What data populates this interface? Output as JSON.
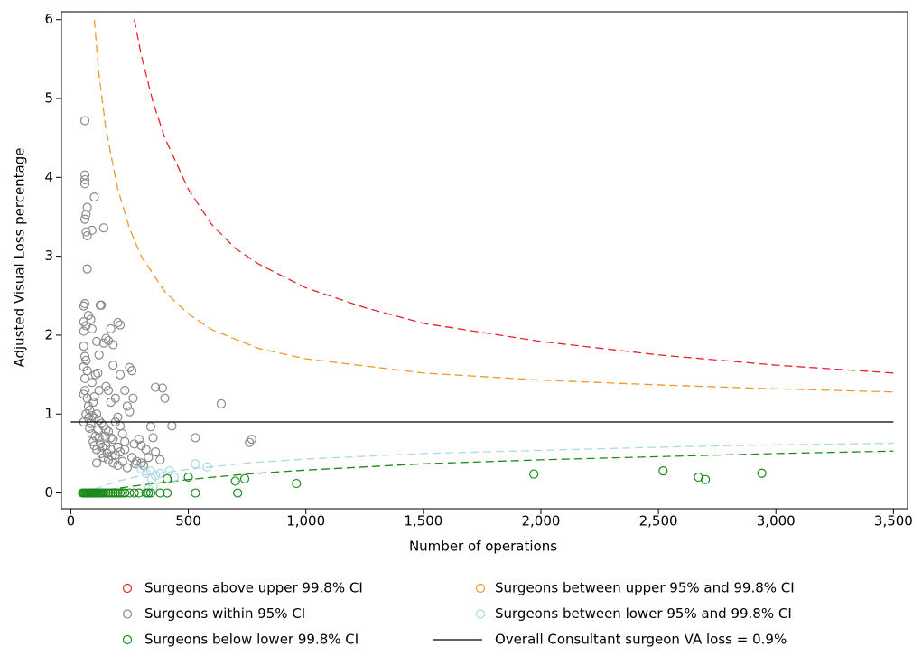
{
  "chart_data": {
    "type": "scatter",
    "xlabel": "Number of operations",
    "ylabel": "Adjusted Visual Loss percentage",
    "xlim": [
      -40,
      3560
    ],
    "ylim": [
      -0.2,
      6.1
    ],
    "xticks": [
      0,
      500,
      {
        "value": 1000,
        "label": "1,000"
      },
      {
        "value": 1500,
        "label": "1,500"
      },
      {
        "value": 2000,
        "label": "2,000"
      },
      {
        "value": 2500,
        "label": "2,500"
      },
      {
        "value": 3000,
        "label": "3,000"
      },
      {
        "value": 3500,
        "label": "3,500"
      }
    ],
    "yticks": [
      0,
      1,
      2,
      3,
      4,
      5,
      6
    ],
    "series": [
      {
        "name": "Surgeons above upper 99.8% CI",
        "color": "#e8202a",
        "marker": "circle",
        "x": [],
        "y": []
      },
      {
        "name": "Surgeons between upper 95% and 99.8% CI",
        "color": "#f0962a",
        "marker": "circle",
        "x": [],
        "y": []
      },
      {
        "name": "Surgeons within 95% CI",
        "color": "#8a8a8a",
        "marker": "circle",
        "x": [
          60,
          60,
          60,
          60,
          100,
          70,
          65,
          60,
          65,
          70,
          90,
          140,
          70,
          60,
          55,
          75,
          55,
          55,
          85,
          65,
          90,
          130,
          125,
          200,
          210,
          55,
          60,
          65,
          55,
          70,
          110,
          120,
          150,
          160,
          140,
          170,
          180,
          115,
          105,
          180,
          250,
          260,
          90,
          60,
          55,
          70,
          100,
          120,
          150,
          160,
          170,
          190,
          210,
          230,
          240,
          265,
          360,
          390,
          400,
          640,
          80,
          90,
          100,
          110,
          120,
          130,
          140,
          150,
          160,
          170,
          180,
          190,
          200,
          210,
          220,
          230,
          250,
          270,
          290,
          300,
          320,
          340,
          350,
          360,
          430,
          530,
          770,
          760,
          80,
          90,
          95,
          100,
          110,
          120,
          130,
          140,
          150,
          160,
          170,
          180,
          190,
          200,
          210,
          220,
          240,
          260,
          280,
          300,
          310,
          330,
          380,
          55,
          65,
          75,
          85,
          60,
          75,
          95,
          105,
          115,
          125,
          135,
          145,
          155,
          175,
          200,
          230,
          275,
          110
        ],
        "y": [
          4.72,
          4.03,
          3.97,
          3.92,
          3.75,
          3.62,
          3.53,
          3.47,
          3.31,
          3.26,
          3.33,
          3.36,
          2.84,
          2.4,
          2.37,
          2.25,
          2.17,
          2.05,
          2.2,
          2.12,
          2.08,
          2.38,
          2.38,
          2.16,
          2.13,
          1.86,
          1.73,
          1.68,
          1.6,
          1.55,
          1.92,
          1.75,
          1.96,
          1.93,
          1.9,
          2.08,
          1.88,
          1.52,
          1.5,
          1.62,
          1.59,
          1.55,
          1.4,
          1.3,
          1.25,
          1.2,
          1.22,
          1.3,
          1.35,
          1.3,
          1.15,
          1.2,
          1.5,
          1.3,
          1.1,
          1.2,
          1.34,
          1.33,
          1.2,
          1.13,
          1.05,
          0.98,
          0.95,
          1.0,
          0.92,
          0.88,
          0.85,
          0.8,
          0.78,
          0.7,
          0.68,
          0.9,
          0.96,
          0.85,
          0.75,
          0.65,
          1.03,
          0.62,
          0.68,
          0.6,
          0.55,
          0.84,
          0.7,
          0.52,
          0.85,
          0.7,
          0.68,
          0.64,
          0.82,
          0.75,
          0.65,
          0.6,
          0.55,
          0.7,
          0.5,
          0.45,
          0.6,
          0.42,
          0.55,
          0.38,
          0.48,
          0.35,
          0.52,
          0.4,
          0.32,
          0.45,
          0.4,
          0.38,
          0.35,
          0.45,
          0.42,
          0.9,
          1.0,
          0.95,
          0.88,
          1.45,
          1.1,
          1.15,
          0.72,
          0.8,
          0.62,
          0.58,
          0.72,
          0.5,
          0.47,
          0.58,
          0.55,
          0.37,
          0.38
        ]
      },
      {
        "name": "Surgeons between lower 95% and 99.8% CI",
        "color": "#add8e6",
        "marker": "circle",
        "x": [
          320,
          340,
          360,
          380,
          420,
          440,
          530,
          580,
          300,
          345,
          330,
          350
        ],
        "y": [
          0.25,
          0.28,
          0.22,
          0.25,
          0.28,
          0.2,
          0.37,
          0.33,
          0.3,
          0.18,
          0.05,
          0.08
        ]
      },
      {
        "name": "Surgeons below lower 99.8% CI",
        "color": "#1a8a1a",
        "marker": "circle",
        "x": [
          50,
          55,
          60,
          65,
          70,
          75,
          80,
          85,
          90,
          95,
          100,
          105,
          110,
          115,
          120,
          125,
          130,
          135,
          140,
          150,
          160,
          170,
          180,
          190,
          200,
          210,
          220,
          230,
          250,
          270,
          290,
          320,
          330,
          340,
          380,
          410,
          410,
          500,
          530,
          700,
          710,
          740,
          960,
          1970,
          2520,
          2670,
          2700,
          2940
        ],
        "y": [
          0,
          0,
          0,
          0,
          0,
          0,
          0,
          0,
          0,
          0,
          0,
          0,
          0,
          0,
          0,
          0,
          0,
          0,
          0,
          0,
          0,
          0,
          0,
          0,
          0,
          0,
          0,
          0,
          0,
          0,
          0,
          0,
          0,
          0,
          0,
          0,
          0.18,
          0.2,
          0,
          0.15,
          0,
          0.18,
          0.12,
          0.24,
          0.28,
          0.2,
          0.17,
          0.25
        ]
      },
      {
        "name": "Overall Consultant surgeon VA loss = 0.9%",
        "color": "#000000",
        "marker": "line",
        "x": [
          0,
          3500
        ],
        "y": [
          0.9,
          0.9
        ]
      }
    ],
    "curves": [
      {
        "color": "#e8202a",
        "dash": true,
        "x": [
          270,
          300,
          350,
          400,
          500,
          600,
          700,
          800,
          1000,
          1250,
          1500,
          2000,
          2500,
          3000,
          3500
        ],
        "y": [
          6.0,
          5.55,
          4.95,
          4.5,
          3.85,
          3.4,
          3.1,
          2.9,
          2.6,
          2.35,
          2.15,
          1.92,
          1.75,
          1.62,
          1.52
        ]
      },
      {
        "color": "#f0962a",
        "dash": true,
        "x": [
          100,
          120,
          150,
          200,
          250,
          300,
          400,
          500,
          600,
          800,
          1000,
          1500,
          2000,
          2500,
          3000,
          3500
        ],
        "y": [
          6.0,
          5.3,
          4.6,
          3.85,
          3.35,
          3.0,
          2.55,
          2.27,
          2.07,
          1.83,
          1.7,
          1.52,
          1.43,
          1.37,
          1.32,
          1.28
        ]
      },
      {
        "color": "#add8e6",
        "dash": true,
        "x": [
          100,
          200,
          300,
          500,
          750,
          1000,
          1500,
          2000,
          2500,
          3000,
          3500
        ],
        "y": [
          0.05,
          0.15,
          0.22,
          0.3,
          0.38,
          0.43,
          0.5,
          0.54,
          0.58,
          0.61,
          0.63
        ]
      },
      {
        "color": "#1a8a1a",
        "dash": true,
        "x": [
          50,
          100,
          200,
          300,
          500,
          750,
          1000,
          1500,
          2000,
          2500,
          3000,
          3500
        ],
        "y": [
          0,
          0.01,
          0.06,
          0.1,
          0.17,
          0.24,
          0.29,
          0.37,
          0.42,
          0.46,
          0.5,
          0.53
        ]
      }
    ]
  }
}
